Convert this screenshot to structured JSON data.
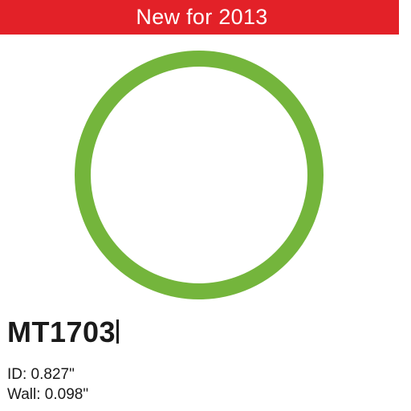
{
  "banner": {
    "text": "New for 2013",
    "color": "#e32128"
  },
  "product": {
    "image": "o-ring",
    "ring_color": "#74b53c",
    "part_number": "MT1703",
    "specs": {
      "id": "ID: 0.827\"",
      "wall": "Wall: 0.098\""
    }
  }
}
